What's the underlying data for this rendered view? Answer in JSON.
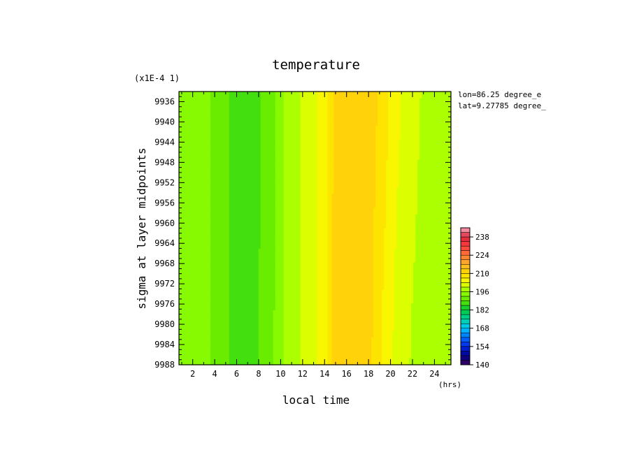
{
  "chart_data": {
    "type": "heatmap",
    "title": "temperature",
    "xlabel": "local time",
    "ylabel": "sigma at layer midpoints",
    "x_unit": "(hrs)",
    "y_scale_note": "(x1E-4 1)",
    "annotations": [
      "lon=86.25 degree_e",
      "lat=9.27785 degree_"
    ],
    "xlim": [
      0.75,
      25.5
    ],
    "ylim": [
      9988,
      9934
    ],
    "x_ticks": [
      2,
      4,
      6,
      8,
      10,
      12,
      14,
      16,
      18,
      20,
      22,
      24
    ],
    "y_ticks": [
      9936,
      9940,
      9944,
      9948,
      9952,
      9956,
      9960,
      9964,
      9968,
      9972,
      9976,
      9980,
      9984,
      9988
    ],
    "x": [
      0.75,
      1.5,
      3.0,
      4.5,
      6.0,
      7.5,
      9.0,
      10.5,
      11.5,
      12.0,
      13.0,
      14.0,
      14.8,
      16.5,
      18.0,
      18.5,
      19.5,
      20.5,
      22.0,
      23.5,
      25.5
    ],
    "z_top": [
      196,
      195,
      194,
      190,
      188,
      188,
      190,
      197,
      199,
      200,
      202,
      205,
      210,
      213,
      213,
      211,
      208,
      204,
      201,
      198,
      196
    ],
    "z_bottom": [
      196,
      196,
      194,
      190,
      188,
      188,
      191,
      197,
      199,
      200,
      202,
      205,
      211,
      213,
      212,
      209,
      205,
      202,
      199,
      197,
      196
    ],
    "colorbar": {
      "min": 140,
      "max": 245,
      "step": 3.5,
      "tick_labels": [
        140,
        154,
        168,
        182,
        196,
        210,
        224,
        238
      ]
    }
  }
}
